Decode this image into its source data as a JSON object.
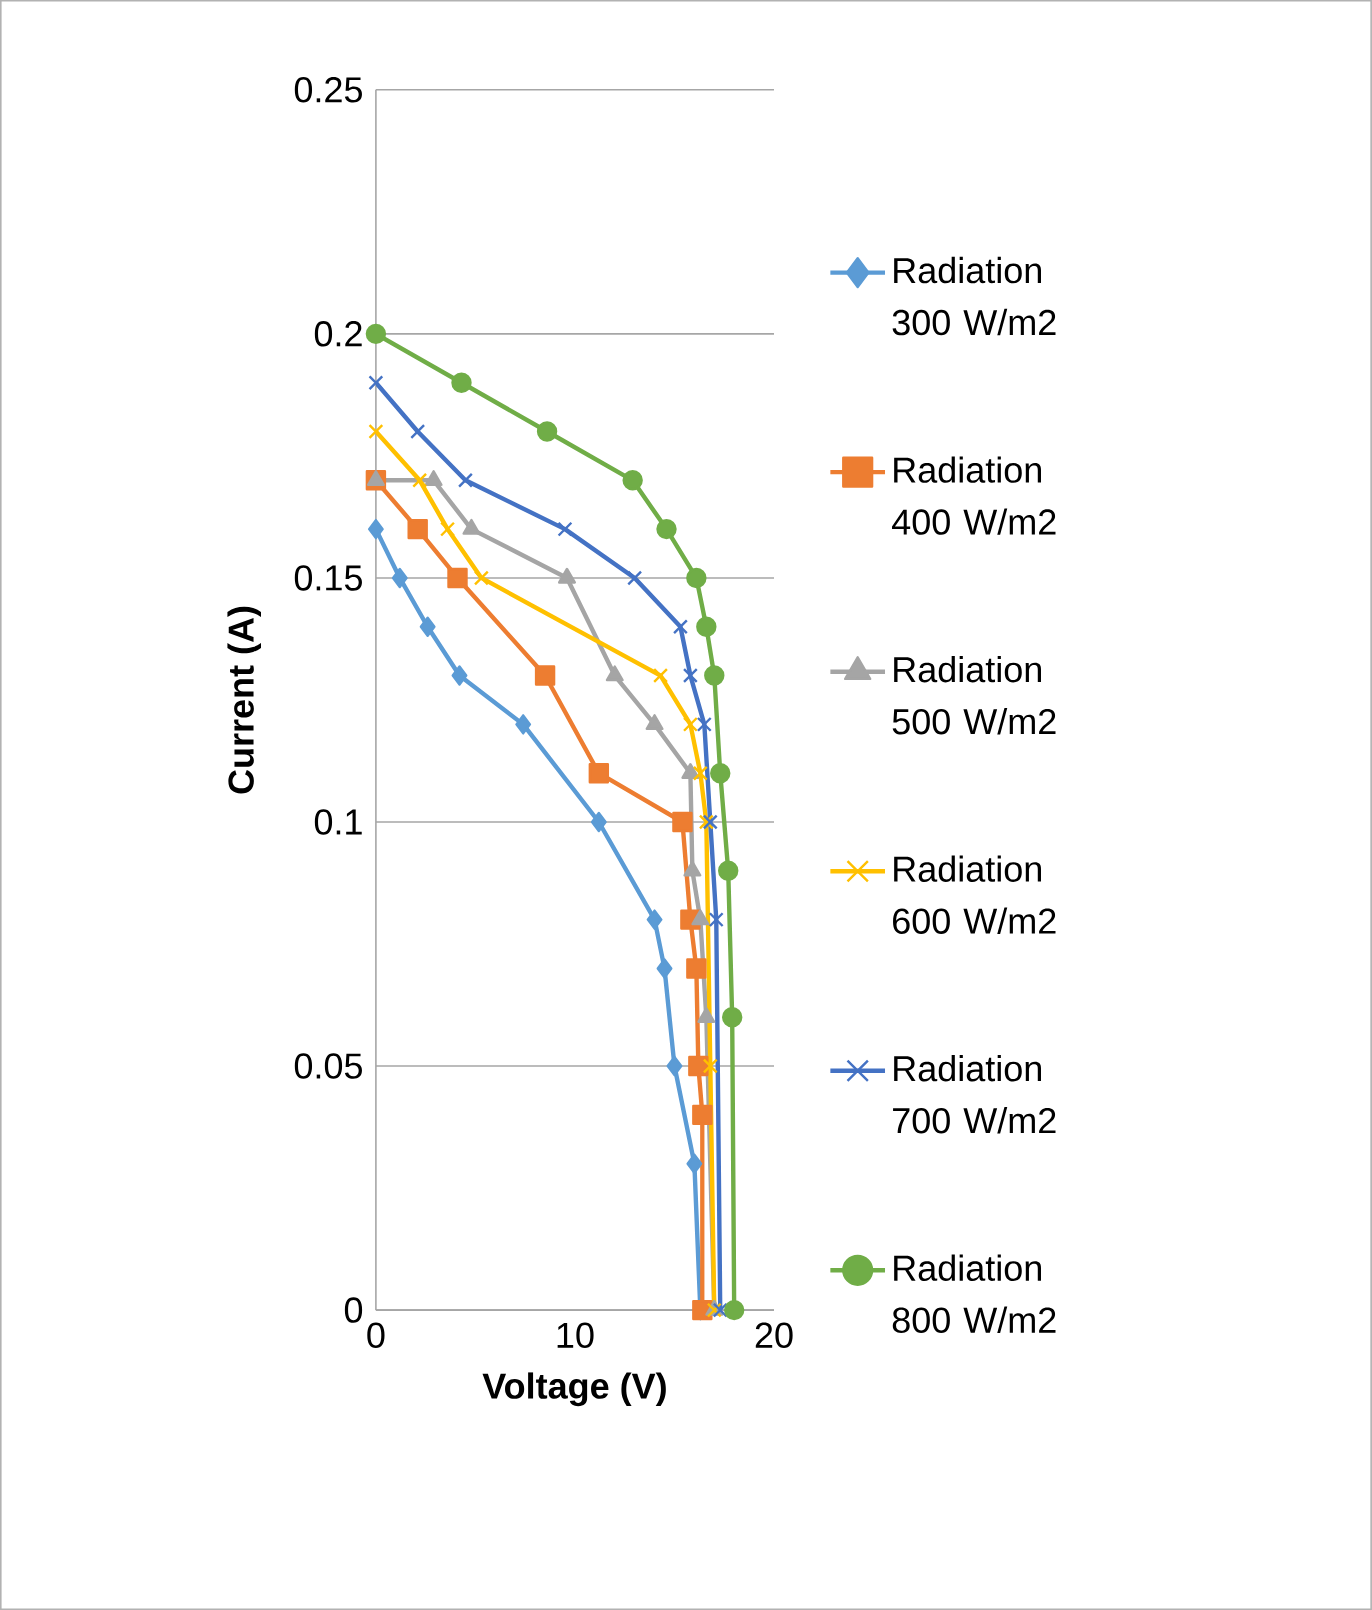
{
  "chart_data": {
    "type": "line",
    "xlabel": "Voltage (V)",
    "ylabel": "Current (A)",
    "xlim": [
      0,
      20
    ],
    "xticks": [
      0,
      10,
      20
    ],
    "ylim": [
      0,
      0.25
    ],
    "yticks": [
      0,
      0.05,
      0.1,
      0.15,
      0.2,
      0.25
    ],
    "grid": "y",
    "legend": "right",
    "series": [
      {
        "name": "Radiation 300 W/m2",
        "color": "#5b9bd5",
        "marker": "diamond",
        "x": [
          0,
          1.2,
          2.6,
          4.2,
          7.4,
          11.2,
          14,
          14.5,
          15,
          16,
          16.3
        ],
        "values": [
          0.16,
          0.15,
          0.14,
          0.13,
          0.12,
          0.1,
          0.08,
          0.07,
          0.05,
          0.03,
          0
        ]
      },
      {
        "name": "Radiation 400 W/m2",
        "color": "#ed7d31",
        "marker": "square",
        "x": [
          0,
          2.1,
          4.1,
          8.5,
          11.2,
          15.4,
          15.8,
          16.1,
          16.2,
          16.4,
          16.4
        ],
        "values": [
          0.17,
          0.16,
          0.15,
          0.13,
          0.11,
          0.1,
          0.08,
          0.07,
          0.05,
          0.04,
          0
        ]
      },
      {
        "name": "Radiation 500 W/m2",
        "color": "#a5a5a5",
        "marker": "triangle",
        "x": [
          0,
          2.9,
          4.8,
          9.6,
          12,
          14,
          15.8,
          15.9,
          16.3,
          16.6,
          17
        ],
        "values": [
          0.17,
          0.17,
          0.16,
          0.15,
          0.13,
          0.12,
          0.11,
          0.09,
          0.08,
          0.06,
          0
        ]
      },
      {
        "name": "Radiation 600 W/m2",
        "color": "#ffc000",
        "marker": "cross",
        "x": [
          0,
          2.2,
          3.6,
          5.3,
          14.3,
          15.8,
          16.3,
          16.6,
          16.8,
          17
        ],
        "values": [
          0.18,
          0.17,
          0.16,
          0.15,
          0.13,
          0.12,
          0.11,
          0.1,
          0.05,
          0
        ]
      },
      {
        "name": "Radiation 700 W/m2",
        "color": "#4472c4",
        "marker": "cross",
        "x": [
          0,
          2.1,
          4.5,
          9.5,
          13,
          15.3,
          15.8,
          16.5,
          16.8,
          17.1,
          17.3
        ],
        "values": [
          0.19,
          0.18,
          0.17,
          0.16,
          0.15,
          0.14,
          0.13,
          0.12,
          0.1,
          0.08,
          0
        ]
      },
      {
        "name": "Radiation 800 W/m2",
        "color": "#70ad47",
        "marker": "circle",
        "x": [
          0,
          4.3,
          8.6,
          12.9,
          14.6,
          16.1,
          16.6,
          17,
          17.3,
          17.7,
          17.9,
          18
        ],
        "values": [
          0.2,
          0.19,
          0.18,
          0.17,
          0.16,
          0.15,
          0.14,
          0.13,
          0.11,
          0.09,
          0.06,
          0
        ]
      }
    ]
  }
}
